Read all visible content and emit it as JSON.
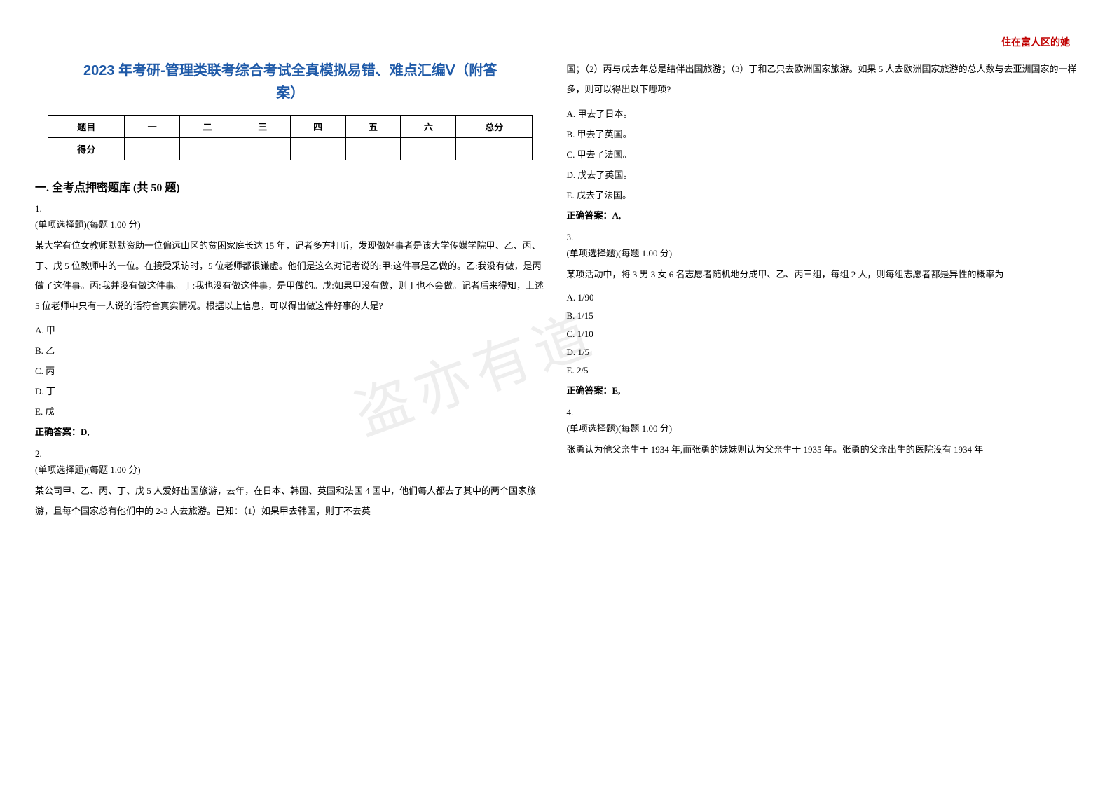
{
  "header": {
    "cornerText": "住在富人区的她",
    "watermark": "盗亦有道"
  },
  "title": {
    "line1": "2023 年考研-管理类联考综合考试全真模拟易错、难点汇编Ⅴ（附答",
    "line2": "案）"
  },
  "scoreTable": {
    "headers": [
      "题目",
      "一",
      "二",
      "三",
      "四",
      "五",
      "六",
      "总分"
    ],
    "rowLabel": "得分"
  },
  "sectionHeading": "一. 全考点押密题库 (共 50 题)",
  "questions": {
    "q1": {
      "num": "1.",
      "type": "(单项选择题)(每题 1.00 分)",
      "text": "某大学有位女教师默默资助一位偏远山区的贫困家庭长达 15 年，记者多方打听，发现做好事者是该大学传媒学院甲、乙、丙、丁、戊 5 位教师中的一位。在接受采访时，5 位老师都很谦虚。他们是这么对记者说的:甲:这件事是乙做的。乙:我没有做，是丙做了这件事。丙:我并没有做这件事。丁:我也没有做这件事，是甲做的。戊:如果甲没有做，则丁也不会做。记者后来得知，上述 5 位老师中只有一人说的话符合真实情况。根据以上信息，可以得出做这件好事的人是?",
      "optA": "A. 甲",
      "optB": "B. 乙",
      "optC": "C. 丙",
      "optD": "D. 丁",
      "optE": "E. 戊",
      "answer": "正确答案：D,"
    },
    "q2": {
      "num": "2.",
      "type": "(单项选择题)(每题 1.00 分)",
      "text": "某公司甲、乙、丙、丁、戊 5 人爱好出国旅游，去年，在日本、韩国、英国和法国 4 国中，他们每人都去了其中的两个国家旅游，且每个国家总有他们中的 2-3 人去旅游。已知：（1）如果甲去韩国，则丁不去英"
    },
    "q2cont": {
      "text": "国；（2）丙与戊去年总是结伴出国旅游；（3）丁和乙只去欧洲国家旅游。如果 5 人去欧洲国家旅游的总人数与去亚洲国家的一样多，则可以得出以下哪项?",
      "optA": "A. 甲去了日本。",
      "optB": "B. 甲去了英国。",
      "optC": "C. 甲去了法国。",
      "optD": "D. 戊去了英国。",
      "optE": "E. 戊去了法国。",
      "answer": "正确答案：A,"
    },
    "q3": {
      "num": "3.",
      "type": "(单项选择题)(每题 1.00 分)",
      "text": "某项活动中，将 3 男 3 女 6 名志愿者随机地分成甲、乙、丙三组，每组 2 人，则每组志愿者都是异性的概率为",
      "optA": "A. 1/90",
      "optB": "B. 1/15",
      "optC": "C. 1/10",
      "optD": "D. 1/5",
      "optE": "E. 2/5",
      "answer": "正确答案：E,"
    },
    "q4": {
      "num": "4.",
      "type": "(单项选择题)(每题 1.00 分)",
      "text": "张勇认为他父亲生于 1934 年,而张勇的妹妹则认为父亲生于 1935 年。张勇的父亲出生的医院没有 1934 年"
    }
  }
}
